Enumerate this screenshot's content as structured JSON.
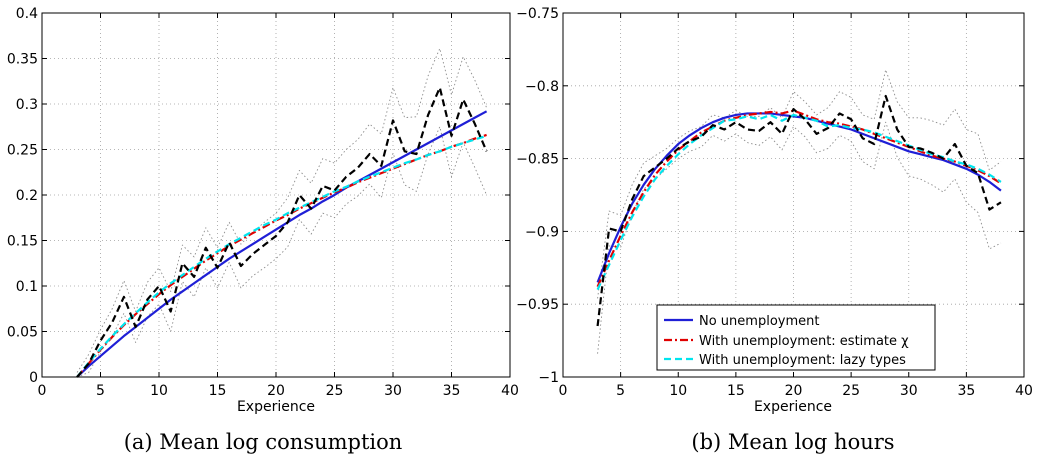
{
  "figure": {
    "captions": [
      "(a) Mean log consumption",
      "(b) Mean log hours"
    ]
  },
  "legend": {
    "entries": [
      {
        "label": "No unemployment",
        "series": "no_unemp"
      },
      {
        "label": "With unemployment: estimate χ",
        "series": "estimate_chi"
      },
      {
        "label": "With unemployment: lazy types",
        "series": "lazy_types"
      }
    ]
  },
  "styles": {
    "no_unemp": {
      "color": "#1f1fd6",
      "dash": "",
      "width": 2.2
    },
    "estimate_chi": {
      "color": "#e00000",
      "dash": "8,3,2,3",
      "width": 2.2
    },
    "lazy_types": {
      "color": "#00e5ee",
      "dash": "7,4",
      "width": 2.2
    },
    "data": {
      "color": "#000000",
      "dash": "7,4",
      "width": 2.2
    },
    "data_ci": {
      "color": "#8c8c8c",
      "dash": "1.5,2.5",
      "width": 0.9
    }
  },
  "chart_data": [
    {
      "type": "line",
      "title": "",
      "xlabel": "Experience",
      "ylabel": "",
      "xlim": [
        0,
        40
      ],
      "ylim": [
        0,
        0.4
      ],
      "xticks": [
        0,
        5,
        10,
        15,
        20,
        25,
        30,
        35,
        40
      ],
      "yticks": [
        0,
        0.05,
        0.1,
        0.15,
        0.2,
        0.25,
        0.3,
        0.35,
        0.4
      ],
      "ytick_labels": [
        "0",
        "0.05",
        "0.1",
        "0.15",
        "0.2",
        "0.25",
        "0.3",
        "0.35",
        "0.4"
      ],
      "grid": true,
      "x": [
        3,
        4,
        5,
        6,
        7,
        8,
        9,
        10,
        11,
        12,
        13,
        14,
        15,
        16,
        17,
        18,
        19,
        20,
        21,
        22,
        23,
        24,
        25,
        26,
        27,
        28,
        29,
        30,
        31,
        32,
        33,
        34,
        35,
        36,
        37,
        38
      ],
      "series": [
        {
          "key": "no_unemp",
          "values": [
            0,
            0.012,
            0.023,
            0.034,
            0.045,
            0.055,
            0.065,
            0.075,
            0.085,
            0.094,
            0.103,
            0.112,
            0.121,
            0.13,
            0.138,
            0.146,
            0.154,
            0.162,
            0.17,
            0.178,
            0.185,
            0.193,
            0.2,
            0.208,
            0.215,
            0.222,
            0.229,
            0.236,
            0.243,
            0.25,
            0.257,
            0.264,
            0.271,
            0.278,
            0.285,
            0.292
          ]
        },
        {
          "key": "estimate_chi",
          "values": [
            0,
            0.015,
            0.03,
            0.044,
            0.057,
            0.069,
            0.08,
            0.091,
            0.101,
            0.11,
            0.119,
            0.128,
            0.136,
            0.144,
            0.151,
            0.158,
            0.165,
            0.172,
            0.178,
            0.185,
            0.191,
            0.197,
            0.203,
            0.208,
            0.214,
            0.219,
            0.224,
            0.229,
            0.234,
            0.239,
            0.244,
            0.248,
            0.253,
            0.257,
            0.262,
            0.266
          ]
        },
        {
          "key": "lazy_types",
          "values": [
            0,
            0.016,
            0.031,
            0.045,
            0.058,
            0.07,
            0.082,
            0.093,
            0.103,
            0.112,
            0.121,
            0.13,
            0.138,
            0.146,
            0.153,
            0.16,
            0.167,
            0.173,
            0.18,
            0.186,
            0.192,
            0.198,
            0.204,
            0.209,
            0.215,
            0.22,
            0.225,
            0.23,
            0.235,
            0.239,
            0.244,
            0.248,
            0.253,
            0.257,
            0.261,
            0.265
          ]
        },
        {
          "key": "data",
          "values": [
            0,
            0.015,
            0.04,
            0.06,
            0.088,
            0.055,
            0.085,
            0.1,
            0.072,
            0.125,
            0.11,
            0.142,
            0.12,
            0.148,
            0.122,
            0.135,
            0.145,
            0.155,
            0.17,
            0.2,
            0.185,
            0.21,
            0.205,
            0.22,
            0.23,
            0.245,
            0.232,
            0.282,
            0.248,
            0.245,
            0.288,
            0.318,
            0.265,
            0.305,
            0.278,
            0.248
          ]
        },
        {
          "key": "data_ci",
          "values": [
            0,
            0.005,
            0.028,
            0.045,
            0.07,
            0.038,
            0.066,
            0.08,
            0.05,
            0.105,
            0.088,
            0.12,
            0.098,
            0.126,
            0.098,
            0.111,
            0.12,
            0.13,
            0.143,
            0.173,
            0.157,
            0.18,
            0.175,
            0.19,
            0.199,
            0.212,
            0.197,
            0.246,
            0.211,
            0.204,
            0.245,
            0.275,
            0.22,
            0.258,
            0.23,
            0.2
          ]
        },
        {
          "key": "data_ci",
          "values": [
            0.005,
            0.025,
            0.052,
            0.075,
            0.106,
            0.072,
            0.104,
            0.12,
            0.094,
            0.145,
            0.132,
            0.164,
            0.142,
            0.17,
            0.146,
            0.159,
            0.17,
            0.18,
            0.197,
            0.227,
            0.213,
            0.24,
            0.235,
            0.25,
            0.261,
            0.278,
            0.267,
            0.318,
            0.285,
            0.286,
            0.331,
            0.361,
            0.31,
            0.352,
            0.326,
            0.296
          ]
        }
      ]
    },
    {
      "type": "line",
      "title": "",
      "xlabel": "Experience",
      "ylabel": "",
      "xlim": [
        0,
        40
      ],
      "ylim": [
        -1,
        -0.75
      ],
      "xticks": [
        0,
        5,
        10,
        15,
        20,
        25,
        30,
        35,
        40
      ],
      "yticks": [
        -1,
        -0.95,
        -0.9,
        -0.85,
        -0.8,
        -0.75
      ],
      "ytick_labels": [
        "−1",
        "−0.95",
        "−0.9",
        "−0.85",
        "−0.8",
        "−0.75"
      ],
      "grid": true,
      "legend_position": "bottom-center",
      "x": [
        3,
        4,
        5,
        6,
        7,
        8,
        9,
        10,
        11,
        12,
        13,
        14,
        15,
        16,
        17,
        18,
        19,
        20,
        21,
        22,
        23,
        24,
        25,
        26,
        27,
        28,
        29,
        30,
        31,
        32,
        33,
        34,
        35,
        36,
        37,
        38
      ],
      "series": [
        {
          "key": "no_unemp",
          "values": [
            -0.935,
            -0.915,
            -0.897,
            -0.881,
            -0.868,
            -0.857,
            -0.848,
            -0.84,
            -0.834,
            -0.829,
            -0.825,
            -0.822,
            -0.82,
            -0.819,
            -0.819,
            -0.819,
            -0.82,
            -0.821,
            -0.822,
            -0.824,
            -0.826,
            -0.828,
            -0.83,
            -0.833,
            -0.836,
            -0.839,
            -0.842,
            -0.845,
            -0.847,
            -0.849,
            -0.851,
            -0.854,
            -0.857,
            -0.861,
            -0.866,
            -0.872
          ]
        },
        {
          "key": "estimate_chi",
          "values": [
            -0.938,
            -0.92,
            -0.903,
            -0.887,
            -0.873,
            -0.861,
            -0.852,
            -0.844,
            -0.838,
            -0.832,
            -0.828,
            -0.824,
            -0.822,
            -0.82,
            -0.819,
            -0.818,
            -0.819,
            -0.817,
            -0.82,
            -0.823,
            -0.825,
            -0.826,
            -0.828,
            -0.83,
            -0.833,
            -0.836,
            -0.839,
            -0.842,
            -0.845,
            -0.848,
            -0.85,
            -0.852,
            -0.855,
            -0.858,
            -0.862,
            -0.867
          ]
        },
        {
          "key": "lazy_types",
          "values": [
            -0.94,
            -0.923,
            -0.906,
            -0.89,
            -0.876,
            -0.864,
            -0.855,
            -0.847,
            -0.84,
            -0.834,
            -0.829,
            -0.824,
            -0.823,
            -0.821,
            -0.823,
            -0.82,
            -0.824,
            -0.82,
            -0.822,
            -0.824,
            -0.828,
            -0.827,
            -0.829,
            -0.83,
            -0.832,
            -0.835,
            -0.838,
            -0.841,
            -0.844,
            -0.847,
            -0.849,
            -0.852,
            -0.854,
            -0.857,
            -0.861,
            -0.866
          ]
        },
        {
          "key": "data",
          "values": [
            -0.965,
            -0.898,
            -0.9,
            -0.878,
            -0.862,
            -0.856,
            -0.85,
            -0.843,
            -0.838,
            -0.835,
            -0.827,
            -0.83,
            -0.825,
            -0.83,
            -0.831,
            -0.825,
            -0.833,
            -0.816,
            -0.823,
            -0.833,
            -0.829,
            -0.819,
            -0.823,
            -0.836,
            -0.84,
            -0.807,
            -0.83,
            -0.842,
            -0.843,
            -0.846,
            -0.85,
            -0.84,
            -0.855,
            -0.86,
            -0.885,
            -0.88
          ]
        },
        {
          "key": "data_ci",
          "values": [
            -0.984,
            -0.91,
            -0.911,
            -0.888,
            -0.871,
            -0.864,
            -0.857,
            -0.85,
            -0.845,
            -0.842,
            -0.834,
            -0.838,
            -0.833,
            -0.839,
            -0.841,
            -0.835,
            -0.844,
            -0.828,
            -0.835,
            -0.846,
            -0.843,
            -0.834,
            -0.838,
            -0.852,
            -0.857,
            -0.825,
            -0.849,
            -0.862,
            -0.864,
            -0.868,
            -0.873,
            -0.864,
            -0.88,
            -0.887,
            -0.912,
            -0.908
          ]
        },
        {
          "key": "data_ci",
          "values": [
            -0.946,
            -0.886,
            -0.889,
            -0.868,
            -0.853,
            -0.848,
            -0.843,
            -0.836,
            -0.831,
            -0.828,
            -0.82,
            -0.822,
            -0.817,
            -0.821,
            -0.821,
            -0.815,
            -0.822,
            -0.804,
            -0.811,
            -0.82,
            -0.815,
            -0.804,
            -0.808,
            -0.82,
            -0.823,
            -0.789,
            -0.811,
            -0.822,
            -0.822,
            -0.824,
            -0.827,
            -0.816,
            -0.83,
            -0.833,
            -0.858,
            -0.852
          ]
        }
      ]
    }
  ]
}
